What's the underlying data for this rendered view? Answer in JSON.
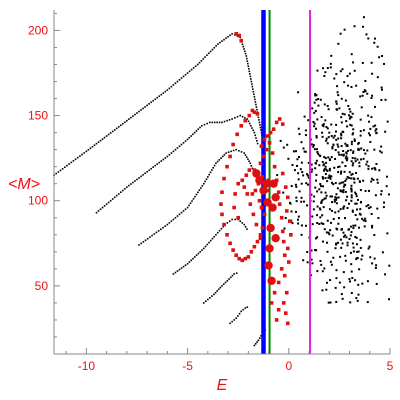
{
  "chart_data": {
    "type": "scatter",
    "title": "",
    "xlabel": "E",
    "ylabel": "<M>",
    "xlim": [
      -11.6,
      5
    ],
    "ylim": [
      10,
      212
    ],
    "xticks": [
      -10,
      -5,
      0,
      5
    ],
    "yticks": [
      50,
      100,
      150,
      200
    ],
    "xtick_labels": [
      "-10",
      "-5",
      "0",
      "5"
    ],
    "ytick_labels": [
      "50",
      "100",
      "150",
      "200"
    ],
    "grid": false,
    "legend": "none",
    "colors": {
      "axis": "#888888",
      "labels": "#ee1111",
      "black_points": "#000000",
      "red_points": "#dd1111",
      "blue_line": "#0000ff",
      "green_line": "#008800",
      "magenta_line": "#dd22dd"
    },
    "vertical_lines": [
      {
        "x": -1.25,
        "color": "#0000ff",
        "width": 4.5
      },
      {
        "x": -0.95,
        "color": "#008800",
        "width": 2
      },
      {
        "x": 1.05,
        "color": "#dd22dd",
        "width": 2
      }
    ],
    "series": [
      {
        "style": "dotted-curve",
        "color": "#000000",
        "points": [
          [
            -11.6,
            115
          ],
          [
            -10,
            129
          ],
          [
            -8,
            147
          ],
          [
            -6,
            165
          ],
          [
            -4.5,
            180
          ],
          [
            -3.5,
            192
          ],
          [
            -2.8,
            198
          ],
          [
            -2.4,
            196
          ],
          [
            -2.1,
            185
          ],
          [
            -1.85,
            170
          ],
          [
            -1.6,
            155
          ],
          [
            -1.35,
            140
          ],
          [
            -1.2,
            128
          ]
        ]
      },
      {
        "style": "dotted-curve",
        "color": "#000000",
        "points": [
          [
            -9.5,
            93
          ],
          [
            -8,
            108
          ],
          [
            -6,
            126
          ],
          [
            -5,
            136
          ],
          [
            -4.3,
            144
          ],
          [
            -3.9,
            146
          ],
          [
            -3.3,
            146
          ],
          [
            -2.8,
            148
          ],
          [
            -2.4,
            150
          ],
          [
            -2.05,
            148
          ],
          [
            -1.7,
            140
          ],
          [
            -1.5,
            132
          ]
        ]
      },
      {
        "style": "dotted-curve",
        "color": "#000000",
        "points": [
          [
            -7.4,
            74
          ],
          [
            -6,
            86
          ],
          [
            -5,
            96
          ],
          [
            -4.2,
            110
          ],
          [
            -3.6,
            122
          ],
          [
            -3.1,
            128
          ],
          [
            -2.6,
            130
          ],
          [
            -2.2,
            128
          ],
          [
            -1.9,
            122
          ],
          [
            -1.7,
            116
          ]
        ]
      },
      {
        "style": "dotted-curve",
        "color": "#000000",
        "points": [
          [
            -5.7,
            57
          ],
          [
            -5,
            63
          ],
          [
            -4.2,
            72
          ],
          [
            -3.6,
            80
          ],
          [
            -3.15,
            86
          ],
          [
            -2.8,
            89
          ],
          [
            -2.5,
            89
          ],
          [
            -2.2,
            86
          ],
          [
            -2,
            82
          ]
        ]
      },
      {
        "style": "dotted-curve",
        "color": "#000000",
        "points": [
          [
            -4.2,
            40
          ],
          [
            -3.7,
            45
          ],
          [
            -3.3,
            50
          ],
          [
            -2.95,
            54
          ],
          [
            -2.7,
            57
          ],
          [
            -2.45,
            58
          ]
        ]
      },
      {
        "style": "dotted-curve",
        "color": "#000000",
        "points": [
          [
            -2.9,
            28
          ],
          [
            -2.6,
            31
          ],
          [
            -2.35,
            35
          ],
          [
            -2.15,
            37
          ],
          [
            -1.95,
            38
          ]
        ]
      },
      {
        "style": "dotted-curve",
        "color": "#000000",
        "points": [
          [
            -1.7,
            15
          ],
          [
            -1.5,
            18
          ],
          [
            -1.3,
            22
          ],
          [
            -1.1,
            25
          ]
        ]
      },
      {
        "style": "red-points",
        "color": "#dd1111",
        "points": [
          [
            -2.6,
            198
          ],
          [
            -2.45,
            197
          ],
          [
            -2.35,
            194
          ],
          [
            -1.8,
            153
          ],
          [
            -1.7,
            152
          ],
          [
            -1.55,
            151
          ],
          [
            -1.95,
            150
          ],
          [
            -2.15,
            147
          ],
          [
            -2.35,
            144
          ],
          [
            -2.55,
            139
          ],
          [
            -2.75,
            133
          ],
          [
            -2.9,
            126
          ],
          [
            -3.05,
            120
          ],
          [
            -3.2,
            113
          ],
          [
            -3.3,
            105
          ],
          [
            -3.35,
            98
          ],
          [
            -3.3,
            92
          ],
          [
            -3.2,
            86
          ],
          [
            -3.05,
            80
          ],
          [
            -2.9,
            75
          ],
          [
            -2.75,
            71
          ],
          [
            -2.6,
            68
          ],
          [
            -2.45,
            66
          ],
          [
            -2.3,
            65
          ],
          [
            -2.15,
            66
          ],
          [
            -2,
            67
          ],
          [
            -1.85,
            70
          ],
          [
            -1.7,
            73
          ],
          [
            -1.55,
            76
          ],
          [
            -1.4,
            78
          ],
          [
            -1.3,
            84
          ],
          [
            -1.2,
            92
          ],
          [
            -1.1,
            100
          ],
          [
            -1.05,
            106
          ],
          [
            -1.0,
            112
          ],
          [
            -1.3,
            114
          ],
          [
            -1.5,
            110
          ],
          [
            -1.65,
            106
          ],
          [
            -1.8,
            104
          ],
          [
            -1.7,
            118
          ],
          [
            -1.55,
            116
          ],
          [
            -1.4,
            122
          ],
          [
            -1.25,
            126
          ],
          [
            -1.1,
            130
          ],
          [
            -0.95,
            134
          ],
          [
            -0.8,
            128
          ],
          [
            -0.7,
            120
          ],
          [
            -0.6,
            112
          ],
          [
            -0.5,
            105
          ],
          [
            -0.45,
            98
          ],
          [
            -0.35,
            90
          ],
          [
            -0.3,
            82
          ],
          [
            -0.25,
            76
          ],
          [
            -0.2,
            68
          ],
          [
            -0.35,
            60
          ],
          [
            -0.5,
            52
          ],
          [
            -0.7,
            46
          ],
          [
            -0.85,
            40
          ],
          [
            -0.5,
            36
          ],
          [
            -0.6,
            30
          ],
          [
            -1.4,
            80
          ],
          [
            -1.6,
            86
          ],
          [
            -1.75,
            92
          ],
          [
            -1.9,
            98
          ],
          [
            -2.05,
            104
          ],
          [
            -2.2,
            108
          ],
          [
            -1.35,
            132
          ],
          [
            -1.2,
            136
          ],
          [
            -1.05,
            138
          ],
          [
            -0.9,
            140
          ],
          [
            -0.75,
            142
          ],
          [
            -0.6,
            146
          ],
          [
            -0.45,
            148
          ],
          [
            -0.3,
            145
          ],
          [
            -2.5,
            90
          ],
          [
            -2.7,
            96
          ],
          [
            -2.65,
            104
          ],
          [
            -2.5,
            110
          ],
          [
            -2.3,
            112
          ],
          [
            -2.1,
            115
          ],
          [
            -1.95,
            118
          ],
          [
            -0.3,
            116
          ],
          [
            -0.15,
            108
          ],
          [
            -0.05,
            102
          ],
          [
            -0.1,
            94
          ],
          [
            0.05,
            88
          ],
          [
            0.1,
            80
          ],
          [
            -0.05,
            72
          ],
          [
            0.0,
            64
          ],
          [
            -0.2,
            56
          ],
          [
            -0.1,
            46
          ],
          [
            -0.25,
            40
          ],
          [
            -0.15,
            34
          ],
          [
            -0.05,
            28
          ],
          [
            -1.45,
            100
          ],
          [
            -1.35,
            96
          ]
        ]
      },
      {
        "style": "red-large-points",
        "color": "#dd1111",
        "points": [
          [
            -1.45,
            112
          ],
          [
            -1.25,
            106
          ],
          [
            -1.1,
            110
          ],
          [
            -1.05,
            99
          ],
          [
            -0.9,
            84
          ],
          [
            -0.8,
            96
          ],
          [
            -0.75,
            110
          ],
          [
            -0.65,
            102
          ],
          [
            -0.95,
            72
          ],
          [
            -0.85,
            53
          ],
          [
            -1.0,
            62
          ],
          [
            -0.65,
            78
          ],
          [
            -1.6,
            116
          ]
        ]
      }
    ],
    "scatter_cloud": {
      "x_range": [
        -1,
        5
      ],
      "y_range": [
        40,
        212
      ],
      "center": [
        2.6,
        110
      ],
      "count": 650
    }
  }
}
